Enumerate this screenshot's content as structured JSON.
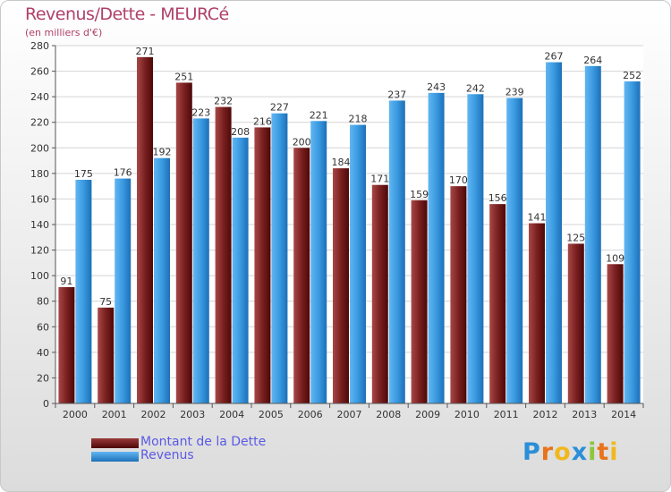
{
  "chart_data": {
    "type": "bar",
    "title": "Revenus/Dette - MEURCé",
    "subtitle": "(en milliers d'€)",
    "xlabel": "",
    "ylabel": "",
    "ylim": [
      0,
      280
    ],
    "yticks": [
      0,
      20,
      40,
      60,
      80,
      100,
      120,
      140,
      160,
      180,
      200,
      220,
      240,
      260,
      280
    ],
    "grid": true,
    "categories": [
      "2000",
      "2001",
      "2002",
      "2003",
      "2004",
      "2005",
      "2006",
      "2007",
      "2008",
      "2009",
      "2010",
      "2011",
      "2012",
      "2013",
      "2014"
    ],
    "series": [
      {
        "name": "Montant de la Dette",
        "color": "#7a1a1a",
        "values": [
          91,
          75,
          271,
          251,
          232,
          216,
          200,
          184,
          171,
          159,
          170,
          156,
          141,
          125,
          109
        ]
      },
      {
        "name": "Revenus",
        "color": "#3a9ae0",
        "values": [
          175,
          176,
          192,
          223,
          208,
          227,
          221,
          218,
          237,
          243,
          242,
          239,
          267,
          264,
          252
        ]
      }
    ],
    "legend_position": "bottom-left"
  },
  "logo": {
    "letters": [
      "P",
      "r",
      "o",
      "x",
      "i",
      "t",
      "i"
    ],
    "colors": [
      "#2a8fd8",
      "#e8731a",
      "#f0b81e",
      "#2a8fd8",
      "#8dc63f",
      "#e8731a",
      "#f0b81e"
    ]
  }
}
